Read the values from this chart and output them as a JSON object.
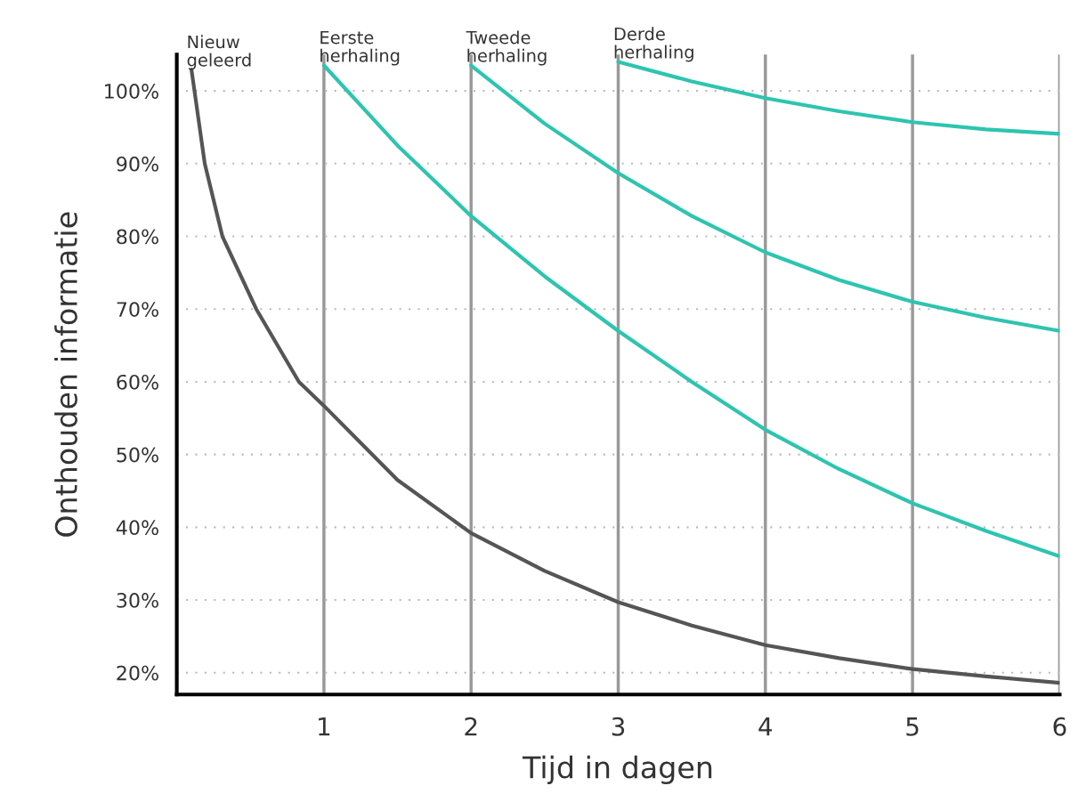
{
  "chart_data": {
    "type": "line",
    "xlabel": "Tijd in dagen",
    "ylabel": "Onthouden informatie",
    "xlim": [
      0,
      6
    ],
    "xticks": [
      1,
      2,
      3,
      4,
      5,
      6
    ],
    "ylim": [
      17,
      105
    ],
    "yticks": [
      {
        "value": 20,
        "label": "20%"
      },
      {
        "value": 30,
        "label": "30%"
      },
      {
        "value": 40,
        "label": "40%"
      },
      {
        "value": 50,
        "label": "50%"
      },
      {
        "value": 60,
        "label": "60%"
      },
      {
        "value": 70,
        "label": "70%"
      },
      {
        "value": 80,
        "label": "80%"
      },
      {
        "value": 90,
        "label": "90%"
      },
      {
        "value": 100,
        "label": "100%"
      }
    ],
    "grid": true,
    "marker": "none",
    "line_style": "solid",
    "series": [
      {
        "color": "#555555",
        "x": [
          0.1,
          0.19,
          0.31,
          0.54,
          0.83,
          1,
          1.5,
          2,
          2.5,
          3,
          3.5,
          4,
          4.5,
          5,
          5.5,
          6
        ],
        "values": [
          102.9,
          90,
          80,
          70,
          60,
          56.7,
          46.5,
          39.2,
          34,
          29.7,
          26.5,
          23.8,
          22,
          20.5,
          19.5,
          18.6
        ]
      },
      {
        "color": "#2ec4b0",
        "x": [
          1,
          1.5,
          2,
          2.5,
          3,
          3.5,
          4,
          4.5,
          5,
          5.5,
          6
        ],
        "values": [
          103.5,
          92.5,
          82.8,
          74.5,
          67,
          60,
          53.4,
          48,
          43.3,
          39.5,
          36
        ]
      },
      {
        "color": "#2ec4b0",
        "x": [
          2,
          2.5,
          3,
          3.5,
          4,
          4.5,
          5,
          5.5,
          6
        ],
        "values": [
          103.5,
          95.5,
          88.7,
          82.8,
          77.8,
          74,
          71,
          68.8,
          67
        ]
      },
      {
        "color": "#2ec4b0",
        "x": [
          3,
          3.5,
          4,
          4.5,
          5,
          5.5,
          6
        ],
        "values": [
          104,
          101.3,
          99,
          97.2,
          95.7,
          94.7,
          94.1
        ]
      }
    ],
    "annotations": [
      {
        "text": "Nieuw\ngeleerd",
        "x": 0.1,
        "y": 102.9
      },
      {
        "text": "Eerste\nherhaling",
        "x": 1,
        "y": 103.5
      },
      {
        "text": "Tweede\nherhaling",
        "x": 2,
        "y": 103.5
      },
      {
        "text": "Derde\nherhaling",
        "x": 3,
        "y": 104
      }
    ]
  }
}
